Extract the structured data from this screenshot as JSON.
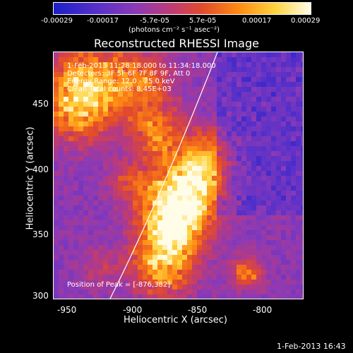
{
  "colorbar": {
    "ticks": [
      "-0.00029",
      "-0.00017",
      "-5.7e-05",
      "5.7e-05",
      "0.00017",
      "0.00029"
    ],
    "units": "(photons cm⁻² s⁻¹ asec⁻²)"
  },
  "title": "Reconstructed RHESSI Image",
  "info": {
    "time": "1-Feb-2013 11:28:18.000 to 11:34:18.000",
    "detectors": "Detectors: 3F 5F 6F 7F 8F 9F, Att 0",
    "energy": "Energy Range: 12.0 - 25.0 keV",
    "clean": "Clean     Total counts: 8.45E+03"
  },
  "peak": "Position of Peak = [-876,382]",
  "x_axis": {
    "label": "Heliocentric X (arcsec)",
    "ticks": [
      "-950",
      "-900",
      "-850",
      "-800"
    ]
  },
  "y_axis": {
    "label": "Heliocentric Y (arcsec)",
    "ticks": [
      "450",
      "400",
      "350",
      "300"
    ]
  },
  "date_stamp": "1-Feb-2013 16:43"
}
